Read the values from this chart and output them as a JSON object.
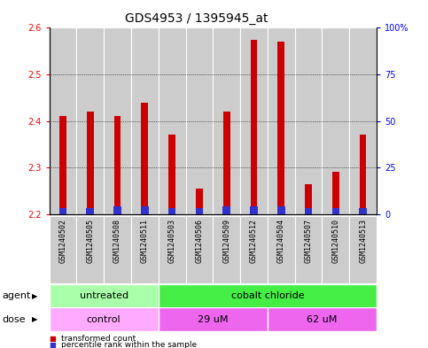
{
  "title": "GDS4953 / 1395945_at",
  "samples": [
    "GSM1240502",
    "GSM1240505",
    "GSM1240508",
    "GSM1240511",
    "GSM1240503",
    "GSM1240506",
    "GSM1240509",
    "GSM1240512",
    "GSM1240504",
    "GSM1240507",
    "GSM1240510",
    "GSM1240513"
  ],
  "transformed_count": [
    2.41,
    2.42,
    2.41,
    2.44,
    2.37,
    2.255,
    2.42,
    2.575,
    2.57,
    2.265,
    2.29,
    2.37
  ],
  "percentile_rank": [
    3,
    3,
    4,
    4,
    3,
    3,
    4,
    4,
    4,
    3,
    3,
    3
  ],
  "ymin": 2.2,
  "ymax": 2.6,
  "yticks": [
    2.2,
    2.3,
    2.4,
    2.5,
    2.6
  ],
  "y2ticks": [
    0,
    25,
    50,
    75,
    100
  ],
  "y2labels": [
    "0",
    "25",
    "50",
    "75",
    "100%"
  ],
  "bar_color_red": "#cc0000",
  "bar_color_blue": "#3333cc",
  "plot_bg": "#ffffff",
  "col_bg": "#cccccc",
  "agent_groups": [
    {
      "label": "untreated",
      "start": 0,
      "end": 4,
      "color": "#aaffaa"
    },
    {
      "label": "cobalt chloride",
      "start": 4,
      "end": 12,
      "color": "#44ee44"
    }
  ],
  "dose_groups": [
    {
      "label": "control",
      "start": 0,
      "end": 4,
      "color": "#ffaaff"
    },
    {
      "label": "29 uM",
      "start": 4,
      "end": 8,
      "color": "#ee66ee"
    },
    {
      "label": "62 uM",
      "start": 8,
      "end": 12,
      "color": "#ee66ee"
    }
  ],
  "legend_red_label": "transformed count",
  "legend_blue_label": "percentile rank within the sample",
  "agent_label": "agent",
  "dose_label": "dose",
  "title_fontsize": 10,
  "tick_fontsize": 7,
  "label_fontsize": 8,
  "sample_fontsize": 6,
  "bar_width": 0.25
}
